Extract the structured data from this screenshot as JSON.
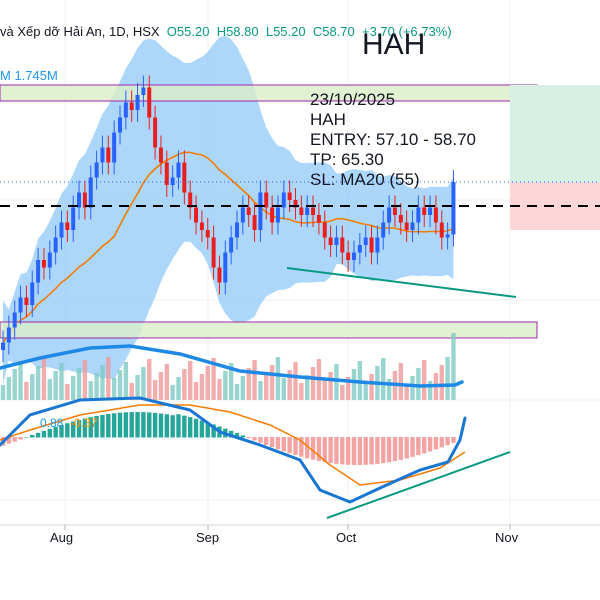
{
  "header": {
    "name": "và Xếp dỡ Hải An, 1D, HSX",
    "open": "O55.20",
    "high": "H58.80",
    "low": "L55.20",
    "close": "C58.70",
    "change": "+3.70 (+6.73%)"
  },
  "volume_label": "M  1.745M",
  "ticker": "HAH",
  "note": {
    "date": "23/10/2025",
    "symbol": "HAH",
    "entry": "ENTRY: 57.10 - 58.70",
    "tp": "TP: 65.30",
    "sl": "SL: MA20 (55)"
  },
  "macd_labels": {
    "macd": "0.88",
    "signal": "-0.37"
  },
  "colors": {
    "up": "#2962ff",
    "down": "#e91e1e",
    "bollinger": "#1e88e5",
    "ma20": "#f57c00",
    "macd": "#1976d2",
    "signal": "#f57c00",
    "hist_pos": "#26a69a",
    "hist_neg": "#ef5350",
    "trendline": "#089981",
    "zone_border": "#9c27b0",
    "tp_zone": "#c8e6c9",
    "sl_zone": "#ffcdd2"
  },
  "chart_data": {
    "type": "candlestick",
    "x_ticks": [
      "Aug",
      "Sep",
      "Oct",
      "Nov"
    ],
    "price": {
      "last_close": 58.7,
      "entry": [
        57.1,
        58.7
      ],
      "take_profit": 65.3,
      "stop_loss": 55.0,
      "ohlc_last": {
        "open": 55.2,
        "high": 58.8,
        "low": 55.2,
        "close": 58.7
      }
    },
    "volume": {
      "last": "1.745M"
    },
    "indicators": [
      "Bollinger Bands",
      "MA20",
      "Volume",
      "Volume MA",
      "MACD"
    ]
  }
}
